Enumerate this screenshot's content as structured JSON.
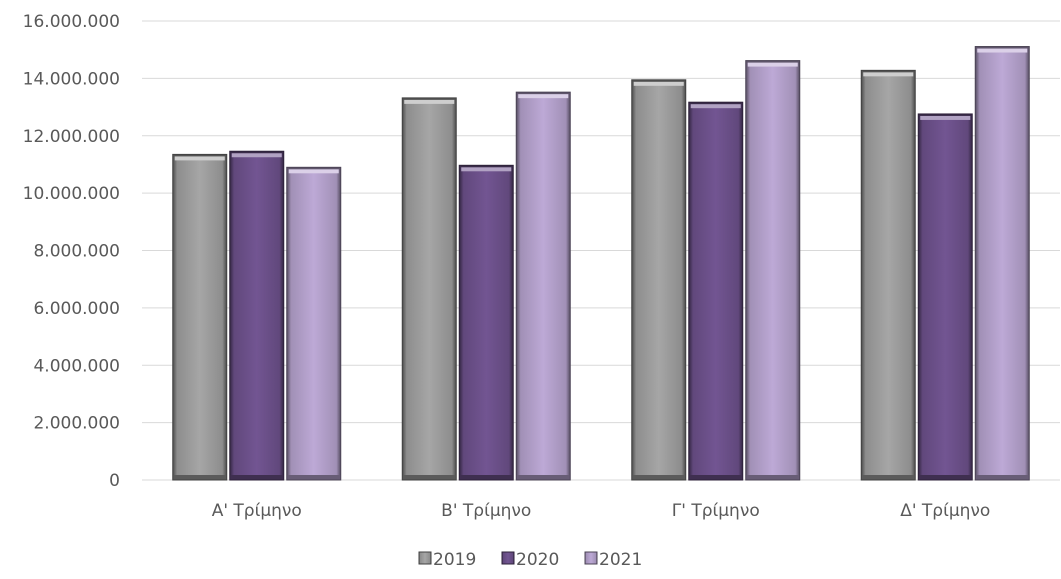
{
  "chart_data": {
    "type": "bar",
    "categories": [
      "Α' Τρίμηνο",
      "Β' Τρίμηνο",
      "Γ' Τρίμηνο",
      "Δ' Τρίμηνο"
    ],
    "series": [
      {
        "name": "2019",
        "color": "#a6a6a6",
        "values": [
          11350000,
          13320000,
          13950000,
          14280000
        ]
      },
      {
        "name": "2020",
        "color": "#725592",
        "values": [
          11460000,
          10970000,
          13170000,
          12760000
        ]
      },
      {
        "name": "2021",
        "color": "#bda9d6",
        "values": [
          10900000,
          13520000,
          14620000,
          15110000
        ]
      }
    ],
    "ylim": [
      0,
      16000000
    ],
    "yticks": [
      0,
      2000000,
      4000000,
      6000000,
      8000000,
      10000000,
      12000000,
      14000000,
      16000000
    ],
    "ytick_labels": [
      "0",
      "2.000.000",
      "4.000.000",
      "6.000.000",
      "8.000.000",
      "10.000.000",
      "12.000.000",
      "14.000.000",
      "16.000.000"
    ],
    "grid": true,
    "legend_position": "bottom"
  }
}
